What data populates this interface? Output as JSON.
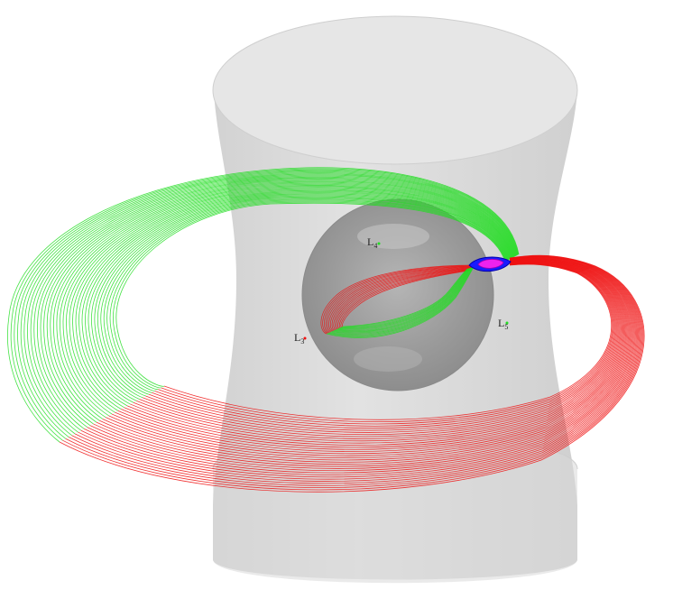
{
  "colors": {
    "background": "#ffffff",
    "hill_surface": "#dcdcdc",
    "hill_edge": "#bdbdbd",
    "sphere": "#9a9a9a",
    "unstable_manifold": "#22dd22",
    "stable_manifold": "#ee1111",
    "neck_periodic_orbit": "#ee22ee",
    "neck_region": "#1a1aff"
  },
  "labels": {
    "L3": {
      "main": "L",
      "sub": "3",
      "dot_color": "#ee1111"
    },
    "L4": {
      "main": "L",
      "sub": "4",
      "dot_color": "#22dd22"
    },
    "L5": {
      "main": "L",
      "sub": "5",
      "dot_color": "#22dd22"
    }
  }
}
